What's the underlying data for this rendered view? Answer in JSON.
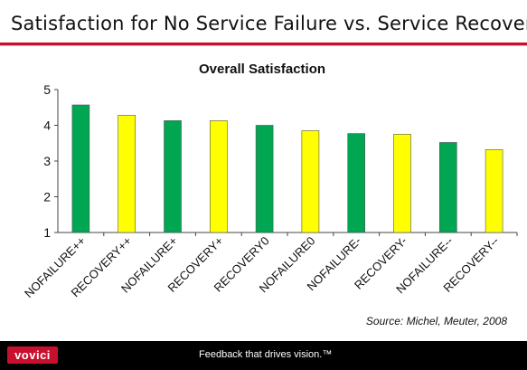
{
  "slide": {
    "title": "Satisfaction for No Service Failure vs. Service Recovery",
    "source": "Source: Michel, Meuter, 2008"
  },
  "footer": {
    "logo_text": "vovici",
    "tagline": "Feedback that drives vision.™"
  },
  "colors": {
    "accent": "#c8102e",
    "bar_green": "#00a651",
    "bar_yellow": "#ffff00"
  },
  "chart_data": {
    "type": "bar",
    "title": "Overall Satisfaction",
    "xlabel": "",
    "ylabel": "",
    "ylim": [
      1,
      5
    ],
    "yticks": [
      1,
      2,
      3,
      4,
      5
    ],
    "grid": false,
    "categories": [
      "NOFAILURE++",
      "RECOVERY++",
      "NOFAILURE+",
      "RECOVERY+",
      "RECOVERY0",
      "NOFAILURE0",
      "NOFAILURE-",
      "RECOVERY-",
      "NOFAILURE--",
      "RECOVERY--"
    ],
    "values": [
      4.57,
      4.28,
      4.13,
      4.13,
      4.0,
      3.85,
      3.77,
      3.75,
      3.52,
      3.32
    ],
    "bar_colors": [
      "#00a651",
      "#ffff00",
      "#00a651",
      "#ffff00",
      "#00a651",
      "#ffff00",
      "#00a651",
      "#ffff00",
      "#00a651",
      "#ffff00"
    ]
  }
}
